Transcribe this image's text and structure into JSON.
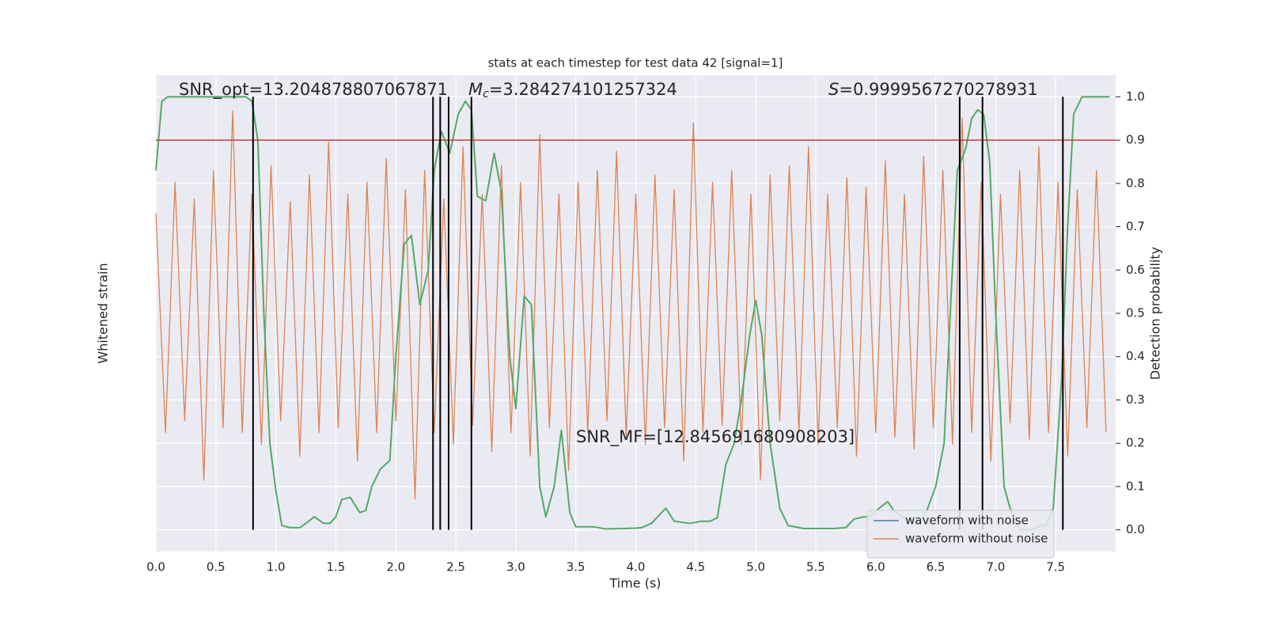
{
  "chart_data": {
    "type": "line",
    "title": "stats at each timestep for test data 42 [signal=1]",
    "xlabel": "Time (s)",
    "ylabel": "Whitened strain",
    "y2label": "Detection probability",
    "xlim": [
      0,
      8.0
    ],
    "xticks": [
      {
        "value": 0,
        "label": "0.0"
      },
      0.5,
      {
        "value": 1,
        "label": "1.0"
      },
      1.5,
      {
        "value": 2,
        "label": "2.0"
      },
      2.5,
      {
        "value": 3,
        "label": "3.0"
      },
      3.5,
      {
        "value": 4,
        "label": "4.0"
      },
      4.5,
      {
        "value": 5,
        "label": "5.0"
      },
      5.5,
      {
        "value": 6,
        "label": "6.0"
      },
      6.5,
      {
        "value": 7,
        "label": "7.0"
      },
      7.5
    ],
    "ylim": [
      -1,
      1
    ],
    "y2lim": [
      -0.05,
      1.05
    ],
    "y2ticks": [
      {
        "value": 0,
        "label": "0.0"
      },
      0.1,
      0.2,
      0.3,
      0.4,
      0.5,
      0.6,
      0.7,
      0.8,
      0.9,
      {
        "value": 1,
        "label": "1.0"
      }
    ],
    "grid": true,
    "legend": "lower right",
    "series": [
      {
        "name": "waveform with noise",
        "color": "#4c72b0"
      },
      {
        "name": "waveform without noise",
        "color": "#dd8452",
        "x": [
          0,
          0.08,
          0.16,
          0.24,
          0.32,
          0.4,
          0.48,
          0.56,
          0.64,
          0.72,
          0.8,
          0.88,
          0.96,
          1.04,
          1.12,
          1.2,
          1.28,
          1.36,
          1.44,
          1.52,
          1.6,
          1.68,
          1.76,
          1.84,
          1.92,
          2,
          2.08,
          2.16,
          2.24,
          2.32,
          2.4,
          2.48,
          2.56,
          2.64,
          2.72,
          2.8,
          2.88,
          2.96,
          3.04,
          3.12,
          3.2,
          3.28,
          3.36,
          3.44,
          3.52,
          3.6,
          3.68,
          3.76,
          3.84,
          3.92,
          4,
          4.08,
          4.16,
          4.24,
          4.32,
          4.4,
          4.48,
          4.56,
          4.64,
          4.72,
          4.8,
          4.88,
          4.96,
          5.04,
          5.12,
          5.2,
          5.28,
          5.36,
          5.44,
          5.52,
          5.6,
          5.68,
          5.76,
          5.84,
          5.92,
          6,
          6.08,
          6.16,
          6.24,
          6.32,
          6.4,
          6.48,
          6.56,
          6.64,
          6.72,
          6.8,
          6.88,
          6.96,
          7.04,
          7.12,
          7.2,
          7.28,
          7.36,
          7.44,
          7.52,
          7.6,
          7.68,
          7.76,
          7.84,
          7.92
        ],
        "values": [
          0.42,
          -0.5,
          0.55,
          -0.45,
          0.48,
          -0.7,
          0.6,
          -0.48,
          0.85,
          -0.5,
          0.5,
          -0.55,
          0.62,
          -0.45,
          0.47,
          -0.6,
          0.58,
          -0.5,
          0.72,
          -0.48,
          0.5,
          -0.62,
          0.55,
          -0.5,
          0.65,
          -0.45,
          0.52,
          -0.78,
          0.6,
          -0.5,
          0.48,
          -0.55,
          0.7,
          -0.47,
          0.5,
          -0.58,
          0.62,
          -0.5,
          0.55,
          -0.6,
          0.75,
          -0.48,
          0.5,
          -0.66,
          0.55,
          -0.5,
          0.6,
          -0.45,
          0.68,
          -0.52,
          0.5,
          -0.55,
          0.58,
          -0.48,
          0.52,
          -0.62,
          0.8,
          -0.5,
          0.55,
          -0.47,
          0.6,
          -0.55,
          0.5,
          -0.7,
          0.58,
          -0.45,
          0.62,
          -0.5,
          0.7,
          -0.55,
          0.5,
          -0.48,
          0.57,
          -0.6,
          0.53,
          -0.5,
          0.64,
          -0.52,
          0.5,
          -0.57,
          0.66,
          -0.48,
          0.6,
          -0.55,
          0.82,
          -0.5,
          0.55,
          -0.62,
          0.5,
          -0.46,
          0.6,
          -0.53,
          0.7,
          -0.5,
          0.55,
          -0.6,
          0.52,
          -0.48,
          0.6,
          -0.5
        ]
      },
      {
        "color": "#55a868",
        "axis": "y2",
        "x": [
          0,
          0.05,
          0.1,
          0.2,
          0.75,
          0.8,
          0.85,
          0.9,
          0.95,
          1.0,
          1.05,
          1.12,
          1.2,
          1.25,
          1.32,
          1.4,
          1.45,
          1.5,
          1.55,
          1.62,
          1.7,
          1.75,
          1.8,
          1.87,
          1.95,
          2.0,
          2.07,
          2.13,
          2.2,
          2.27,
          2.32,
          2.38,
          2.45,
          2.52,
          2.58,
          2.63,
          2.68,
          2.75,
          2.82,
          2.88,
          2.95,
          3.0,
          3.07,
          3.13,
          3.2,
          3.25,
          3.32,
          3.38,
          3.45,
          3.5,
          3.6,
          3.65,
          3.75,
          3.9,
          4.0,
          4.05,
          4.13,
          4.25,
          4.32,
          4.45,
          4.55,
          4.62,
          4.68,
          4.75,
          4.82,
          4.88,
          4.95,
          5.0,
          5.05,
          5.12,
          5.2,
          5.27,
          5.4,
          5.5,
          5.65,
          5.75,
          5.82,
          5.9,
          5.95,
          6.05,
          6.1,
          6.15,
          6.25,
          6.3,
          6.35,
          6.42,
          6.5,
          6.57,
          6.63,
          6.68,
          6.75,
          6.8,
          6.85,
          6.9,
          6.95,
          7.0,
          7.07,
          7.12,
          7.2,
          7.3,
          7.37,
          7.42,
          7.48,
          7.55,
          7.6,
          7.65,
          7.72,
          7.8,
          7.95
        ],
        "values": [
          0.83,
          0.99,
          1.0,
          1.0,
          1.0,
          0.99,
          0.9,
          0.5,
          0.2,
          0.09,
          0.01,
          0.005,
          0.005,
          0.015,
          0.03,
          0.015,
          0.015,
          0.03,
          0.07,
          0.075,
          0.04,
          0.045,
          0.1,
          0.14,
          0.16,
          0.4,
          0.66,
          0.68,
          0.52,
          0.6,
          0.83,
          0.92,
          0.87,
          0.96,
          0.99,
          0.97,
          0.77,
          0.76,
          0.87,
          0.78,
          0.4,
          0.28,
          0.54,
          0.52,
          0.1,
          0.03,
          0.1,
          0.23,
          0.04,
          0.007,
          0.007,
          0.007,
          0.002,
          0.003,
          0.004,
          0.005,
          0.015,
          0.05,
          0.02,
          0.015,
          0.02,
          0.02,
          0.028,
          0.15,
          0.2,
          0.3,
          0.45,
          0.53,
          0.45,
          0.2,
          0.05,
          0.01,
          0.003,
          0.003,
          0.003,
          0.005,
          0.025,
          0.03,
          0.03,
          0.055,
          0.065,
          0.045,
          0.025,
          0.02,
          0.015,
          0.04,
          0.1,
          0.2,
          0.55,
          0.83,
          0.88,
          0.95,
          0.97,
          0.96,
          0.85,
          0.5,
          0.1,
          0.05,
          0.0,
          0.0,
          0.01,
          0.01,
          0.05,
          0.35,
          0.7,
          0.96,
          1.0,
          1.0,
          1.0
        ]
      }
    ],
    "vlines": {
      "values": [
        0.81,
        2.31,
        2.37,
        2.44,
        2.63,
        6.7,
        6.89,
        7.56
      ],
      "color": "#000000"
    },
    "hline": {
      "value": 0.9,
      "color": "#c03d3e"
    },
    "annotations": {
      "snr_opt": "SNR_opt=13.204878807067871",
      "mc": {
        "symbol": "M",
        "subscript": "c",
        "text": "=3.284274101257324"
      },
      "s": {
        "symbol": "S",
        "text": "=0.9999567270278931"
      },
      "snr_mf": "SNR_MF=[12.845691680908203]"
    }
  }
}
